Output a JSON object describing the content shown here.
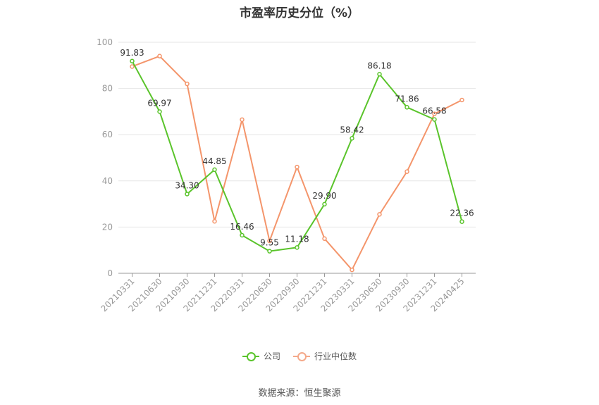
{
  "chart_data": {
    "type": "line",
    "title": "市盈率历史分位（%）",
    "categories": [
      "20210331",
      "20210630",
      "20210930",
      "20211231",
      "20220331",
      "20220630",
      "20220930",
      "20221231",
      "20230331",
      "20230630",
      "20230930",
      "20231231",
      "20240425"
    ],
    "series": [
      {
        "name": "公司",
        "color": "#5ac42b",
        "values": [
          91.83,
          69.97,
          34.3,
          44.85,
          16.46,
          9.55,
          11.18,
          29.9,
          58.42,
          86.18,
          71.86,
          66.58,
          22.36
        ],
        "labels": [
          "91.83",
          "69.97",
          "34.30",
          "44.85",
          "16.46",
          "9.55",
          "11.18",
          "29.90",
          "58.42",
          "86.18",
          "71.86",
          "66.58",
          "22.36"
        ]
      },
      {
        "name": "行业中位数",
        "color": "#f4956b",
        "values": [
          89.5,
          94.0,
          82.0,
          22.5,
          66.5,
          14.0,
          46.0,
          15.0,
          1.5,
          25.5,
          44.0,
          69.0,
          75.0
        ]
      }
    ],
    "yticks": [
      "0",
      "20",
      "40",
      "60",
      "80",
      "100"
    ],
    "ylim": [
      0,
      100
    ],
    "grid": true,
    "legend_position": "bottom"
  },
  "source": "数据来源：恒生聚源"
}
